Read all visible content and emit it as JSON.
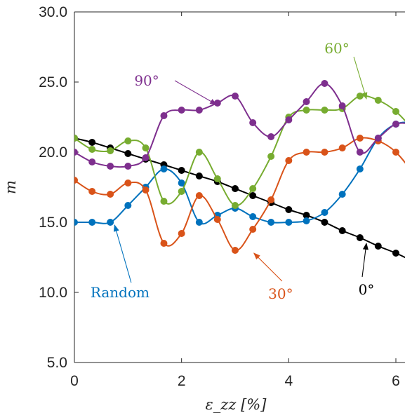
{
  "chart_data": {
    "type": "line",
    "xlabel": "ε_zz  [%]",
    "ylabel": "m",
    "xlim": [
      0,
      6.5
    ],
    "ylim": [
      5,
      30
    ],
    "x_ticks": [
      "0",
      "2",
      "4",
      "6"
    ],
    "y_ticks": [
      "5.0",
      "10.0",
      "15.0",
      "20.0",
      "25.0",
      "30.0"
    ],
    "grid": false,
    "series": [
      {
        "name": "0°",
        "color": "#000000",
        "points": [
          [
            0,
            21.0
          ],
          [
            0.33,
            20.7
          ],
          [
            0.67,
            20.3
          ],
          [
            1.0,
            19.9
          ],
          [
            1.33,
            19.5
          ],
          [
            1.67,
            19.1
          ],
          [
            2.0,
            18.7
          ],
          [
            2.33,
            18.3
          ],
          [
            2.67,
            17.9
          ],
          [
            3.0,
            17.4
          ],
          [
            3.33,
            16.9
          ],
          [
            3.67,
            16.4
          ],
          [
            4.0,
            15.9
          ],
          [
            4.33,
            15.5
          ],
          [
            4.67,
            15.0
          ],
          [
            5.0,
            14.4
          ],
          [
            5.33,
            13.9
          ],
          [
            5.67,
            13.3
          ],
          [
            6.0,
            12.8
          ],
          [
            6.33,
            12.2
          ],
          [
            6.5,
            11.9
          ]
        ]
      },
      {
        "name": "Random",
        "color": "#0072BD",
        "points": [
          [
            0,
            15.0
          ],
          [
            0.33,
            15.0
          ],
          [
            0.67,
            15.0
          ],
          [
            1.0,
            16.2
          ],
          [
            1.33,
            17.5
          ],
          [
            1.67,
            18.8
          ],
          [
            2.0,
            17.8
          ],
          [
            2.33,
            15.0
          ],
          [
            2.67,
            15.5
          ],
          [
            3.0,
            16.0
          ],
          [
            3.33,
            15.4
          ],
          [
            3.67,
            15.0
          ],
          [
            4.0,
            15.0
          ],
          [
            4.33,
            15.1
          ],
          [
            4.67,
            15.7
          ],
          [
            5.0,
            17.0
          ],
          [
            5.33,
            18.8
          ],
          [
            5.67,
            21.0
          ],
          [
            6.0,
            22.0
          ],
          [
            6.33,
            22.0
          ],
          [
            6.5,
            21.0
          ]
        ]
      },
      {
        "name": "30°",
        "color": "#D95319",
        "points": [
          [
            0,
            18.0
          ],
          [
            0.33,
            17.2
          ],
          [
            0.67,
            17.0
          ],
          [
            1.0,
            17.8
          ],
          [
            1.33,
            17.3
          ],
          [
            1.67,
            13.5
          ],
          [
            2.0,
            14.2
          ],
          [
            2.33,
            16.9
          ],
          [
            2.67,
            15.2
          ],
          [
            3.0,
            13.0
          ],
          [
            3.33,
            14.5
          ],
          [
            3.67,
            16.6
          ],
          [
            4.0,
            19.4
          ],
          [
            4.33,
            20.0
          ],
          [
            4.67,
            20.0
          ],
          [
            5.0,
            20.3
          ],
          [
            5.33,
            21.0
          ],
          [
            5.67,
            20.8
          ],
          [
            6.0,
            20.0
          ],
          [
            6.33,
            18.4
          ],
          [
            6.5,
            17.0
          ]
        ]
      },
      {
        "name": "60°",
        "color": "#77AC30",
        "points": [
          [
            0,
            21.0
          ],
          [
            0.33,
            20.2
          ],
          [
            0.67,
            20.1
          ],
          [
            1.0,
            20.8
          ],
          [
            1.33,
            20.3
          ],
          [
            1.67,
            16.5
          ],
          [
            2.0,
            17.2
          ],
          [
            2.33,
            20.0
          ],
          [
            2.67,
            18.1
          ],
          [
            3.0,
            16.2
          ],
          [
            3.33,
            17.4
          ],
          [
            3.67,
            19.7
          ],
          [
            4.0,
            22.5
          ],
          [
            4.33,
            23.0
          ],
          [
            4.67,
            23.0
          ],
          [
            5.0,
            23.1
          ],
          [
            5.33,
            24.0
          ],
          [
            5.67,
            23.7
          ],
          [
            6.0,
            22.9
          ],
          [
            6.33,
            21.5
          ],
          [
            6.5,
            20.2
          ]
        ]
      },
      {
        "name": "90°",
        "color": "#7E2F8E",
        "points": [
          [
            0,
            20.0
          ],
          [
            0.33,
            19.3
          ],
          [
            0.67,
            19.0
          ],
          [
            1.0,
            19.0
          ],
          [
            1.33,
            19.6
          ],
          [
            1.67,
            22.6
          ],
          [
            2.0,
            23.0
          ],
          [
            2.33,
            23.0
          ],
          [
            2.67,
            23.5
          ],
          [
            3.0,
            24.0
          ],
          [
            3.33,
            22.1
          ],
          [
            3.67,
            21.1
          ],
          [
            4.0,
            22.3
          ],
          [
            4.33,
            23.6
          ],
          [
            4.67,
            24.9
          ],
          [
            5.0,
            23.3
          ],
          [
            5.33,
            20.0
          ],
          [
            5.67,
            21.0
          ],
          [
            6.0,
            22.0
          ],
          [
            6.33,
            22.0
          ],
          [
            6.5,
            22.0
          ]
        ]
      }
    ],
    "annotations": [
      {
        "text": "90°",
        "series": "90°",
        "at": [
          2.65,
          23.4
        ],
        "label_at": [
          1.35,
          25.1
        ]
      },
      {
        "text": "60°",
        "series": "60°",
        "at": [
          5.45,
          23.8
        ],
        "label_at": [
          4.9,
          27.4
        ]
      },
      {
        "text": "Random",
        "series": "Random",
        "at": [
          0.75,
          14.8
        ],
        "label_at": [
          0.85,
          10.0
        ]
      },
      {
        "text": "30°",
        "series": "30°",
        "at": [
          3.35,
          12.8
        ],
        "label_at": [
          3.85,
          9.9
        ]
      },
      {
        "text": "0°",
        "series": "0°",
        "at": [
          5.45,
          13.5
        ],
        "label_at": [
          5.45,
          10.2
        ]
      }
    ]
  }
}
